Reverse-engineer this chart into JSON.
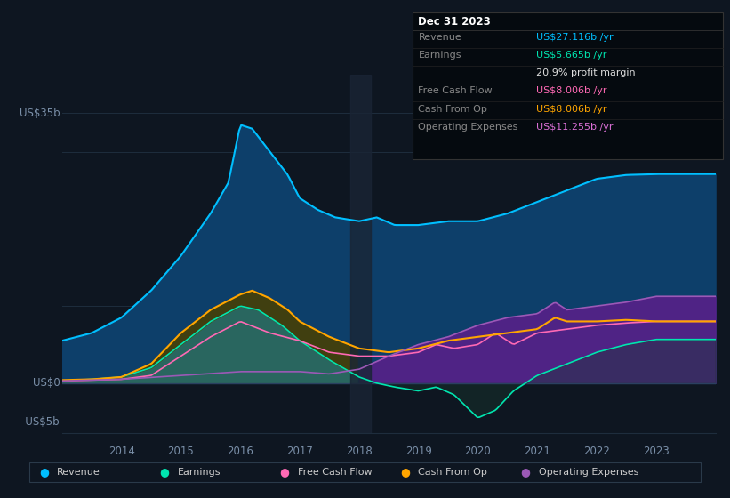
{
  "bg_color": "#0e1621",
  "plot_bg_color": "#0e1621",
  "grid_color": "#1e2d3d",
  "rev_color": "#00bfff",
  "earn_color": "#00e5b0",
  "fcf_color": "#ff69b4",
  "cfop_color": "#ffa500",
  "opex_color": "#9b59b6",
  "rev_fill_color": "#0d3f6a",
  "earn_fill_color": "#2d6b5e",
  "cfop_fill_color": "#4a4000",
  "opex_fill_color": "#5b1f8a",
  "earn_post_fill": "#1a3a30",
  "ylim": [
    -6.5,
    40
  ],
  "year_start": 2013.0,
  "year_end": 2024.0,
  "x_tick_years": [
    2014,
    2015,
    2016,
    2017,
    2018,
    2019,
    2020,
    2021,
    2022,
    2023
  ],
  "y_labels": [
    {
      "val": 35,
      "text": "US$35b"
    },
    {
      "val": 0,
      "text": "US$0"
    },
    {
      "val": -5,
      "text": "-US$5b"
    }
  ],
  "info_box": {
    "title": "Dec 31 2023",
    "title_color": "#ffffff",
    "rows": [
      {
        "label": "Revenue",
        "label_color": "#888888",
        "value": "US$27.116b /yr",
        "value_color": "#00bfff"
      },
      {
        "label": "Earnings",
        "label_color": "#888888",
        "value": "US$5.665b /yr",
        "value_color": "#00e5b0"
      },
      {
        "label": "",
        "label_color": "#888888",
        "value": "20.9% profit margin",
        "value_color": "#dddddd"
      },
      {
        "label": "Free Cash Flow",
        "label_color": "#888888",
        "value": "US$8.006b /yr",
        "value_color": "#ff69b4"
      },
      {
        "label": "Cash From Op",
        "label_color": "#888888",
        "value": "US$8.006b /yr",
        "value_color": "#ffa500"
      },
      {
        "label": "Operating Expenses",
        "label_color": "#888888",
        "value": "US$11.255b /yr",
        "value_color": "#da70d6"
      }
    ]
  },
  "legend": [
    {
      "label": "Revenue",
      "color": "#00bfff"
    },
    {
      "label": "Earnings",
      "color": "#00e5b0"
    },
    {
      "label": "Free Cash Flow",
      "color": "#ff69b4"
    },
    {
      "label": "Cash From Op",
      "color": "#ffa500"
    },
    {
      "label": "Operating Expenses",
      "color": "#9b59b6"
    }
  ],
  "rev_xp": [
    2013.0,
    2013.5,
    2014.0,
    2014.5,
    2015.0,
    2015.5,
    2015.8,
    2016.0,
    2016.2,
    2016.5,
    2016.8,
    2017.0,
    2017.3,
    2017.6,
    2018.0,
    2018.3,
    2018.6,
    2019.0,
    2019.5,
    2020.0,
    2020.5,
    2021.0,
    2021.5,
    2022.0,
    2022.5,
    2023.0,
    2023.5,
    2024.0
  ],
  "rev_yp": [
    5.5,
    6.5,
    8.5,
    12.0,
    16.5,
    22.0,
    26.0,
    33.5,
    33.0,
    30.0,
    27.0,
    24.0,
    22.5,
    21.5,
    21.0,
    21.5,
    20.5,
    20.5,
    21.0,
    21.0,
    22.0,
    23.5,
    25.0,
    26.5,
    27.0,
    27.116,
    27.116,
    27.116
  ],
  "earn_xp": [
    2013.0,
    2013.5,
    2014.0,
    2014.5,
    2015.0,
    2015.5,
    2016.0,
    2016.3,
    2016.7,
    2017.0,
    2017.5,
    2018.0,
    2018.3,
    2018.6,
    2019.0,
    2019.3,
    2019.6,
    2020.0,
    2020.3,
    2020.6,
    2021.0,
    2021.5,
    2022.0,
    2022.5,
    2023.0,
    2023.5,
    2024.0
  ],
  "earn_yp": [
    0.3,
    0.5,
    0.8,
    2.0,
    5.0,
    8.0,
    10.0,
    9.5,
    7.5,
    5.5,
    3.0,
    0.8,
    0.0,
    -0.5,
    -1.0,
    -0.5,
    -1.5,
    -4.5,
    -3.5,
    -1.0,
    1.0,
    2.5,
    4.0,
    5.0,
    5.665,
    5.665,
    5.665
  ],
  "fcf_xp": [
    2013.0,
    2013.5,
    2014.0,
    2014.5,
    2015.0,
    2015.5,
    2016.0,
    2016.5,
    2017.0,
    2017.5,
    2018.0,
    2018.5,
    2019.0,
    2019.3,
    2019.6,
    2020.0,
    2020.3,
    2020.6,
    2021.0,
    2021.5,
    2022.0,
    2022.5,
    2023.0,
    2023.5,
    2024.0
  ],
  "fcf_yp": [
    0.3,
    0.4,
    0.5,
    1.0,
    3.5,
    6.0,
    8.0,
    6.5,
    5.5,
    4.0,
    3.5,
    3.5,
    4.0,
    5.0,
    4.5,
    5.0,
    6.5,
    5.0,
    6.5,
    7.0,
    7.5,
    7.8,
    8.006,
    8.006,
    8.006
  ],
  "cfop_xp": [
    2013.0,
    2013.5,
    2014.0,
    2014.5,
    2015.0,
    2015.5,
    2016.0,
    2016.2,
    2016.5,
    2016.8,
    2017.0,
    2017.5,
    2018.0,
    2018.5,
    2019.0,
    2019.5,
    2020.0,
    2020.5,
    2021.0,
    2021.3,
    2021.5,
    2022.0,
    2022.5,
    2023.0,
    2023.5,
    2024.0
  ],
  "cfop_yp": [
    0.4,
    0.5,
    0.8,
    2.5,
    6.5,
    9.5,
    11.5,
    12.0,
    11.0,
    9.5,
    8.0,
    6.0,
    4.5,
    4.0,
    4.5,
    5.5,
    6.0,
    6.5,
    7.0,
    8.5,
    8.0,
    8.0,
    8.2,
    8.006,
    8.006,
    8.006
  ],
  "opex_xp": [
    2013.0,
    2014.0,
    2015.0,
    2016.0,
    2017.0,
    2017.5,
    2018.0,
    2018.5,
    2019.0,
    2019.5,
    2020.0,
    2020.5,
    2021.0,
    2021.3,
    2021.5,
    2022.0,
    2022.5,
    2023.0,
    2023.5,
    2024.0
  ],
  "opex_yp": [
    0.3,
    0.5,
    1.0,
    1.5,
    1.5,
    1.2,
    1.8,
    3.5,
    5.0,
    6.0,
    7.5,
    8.5,
    9.0,
    10.5,
    9.5,
    10.0,
    10.5,
    11.255,
    11.255,
    11.255
  ]
}
